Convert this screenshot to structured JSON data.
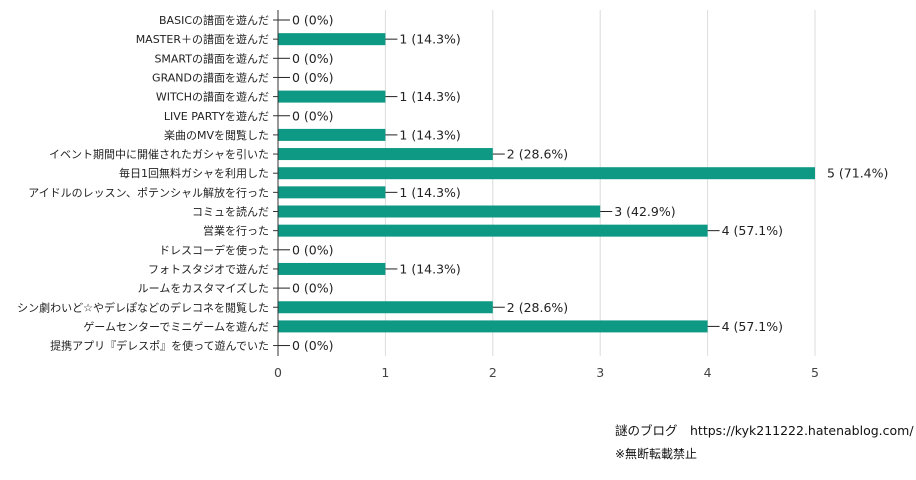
{
  "chart_data": {
    "type": "bar",
    "orientation": "horizontal",
    "categories": [
      "BASICの譜面を遊んだ",
      "MASTER＋の譜面を遊んだ",
      "SMARTの譜面を遊んだ",
      "GRANDの譜面を遊んだ",
      "WITCHの譜面を遊んだ",
      "LIVE PARTYを遊んだ",
      "楽曲のMVを閲覧した",
      "イベント期間中に開催されたガシャを引いた",
      "毎日1回無料ガシャを利用した",
      "アイドルのレッスン、ポテンシャル解放を行った",
      "コミュを読んだ",
      "営業を行った",
      "ドレスコーデを使った",
      "フォトスタジオで遊んだ",
      "ルームをカスタマイズした",
      "シン劇わいど☆やデレぽなどのデレコネを閲覧した",
      "ゲームセンターでミニゲームを遊んだ",
      "提携アプリ『デレスポ』を使って遊んでいた"
    ],
    "values": [
      0,
      1,
      0,
      0,
      1,
      0,
      1,
      2,
      5,
      1,
      3,
      4,
      0,
      1,
      0,
      2,
      4,
      0
    ],
    "value_labels": [
      "0 (0%)",
      "1 (14.3%)",
      "0 (0%)",
      "0 (0%)",
      "1 (14.3%)",
      "0 (0%)",
      "1 (14.3%)",
      "2 (28.6%)",
      "5 (71.4%)",
      "1 (14.3%)",
      "3 (42.9%)",
      "4 (57.1%)",
      "0 (0%)",
      "1 (14.3%)",
      "0 (0%)",
      "2 (28.6%)",
      "4 (57.1%)",
      "0 (0%)"
    ],
    "xticks": [
      "0",
      "1",
      "2",
      "3",
      "4",
      "5"
    ],
    "xlim": [
      0,
      5
    ],
    "grid": true,
    "bar_color": "#0e9985",
    "title": "",
    "xlabel": "",
    "ylabel": ""
  },
  "footer": {
    "blog": "謎のブログ　https://kyk211222.hatenablog.com/",
    "note": "※無断転載禁止"
  }
}
